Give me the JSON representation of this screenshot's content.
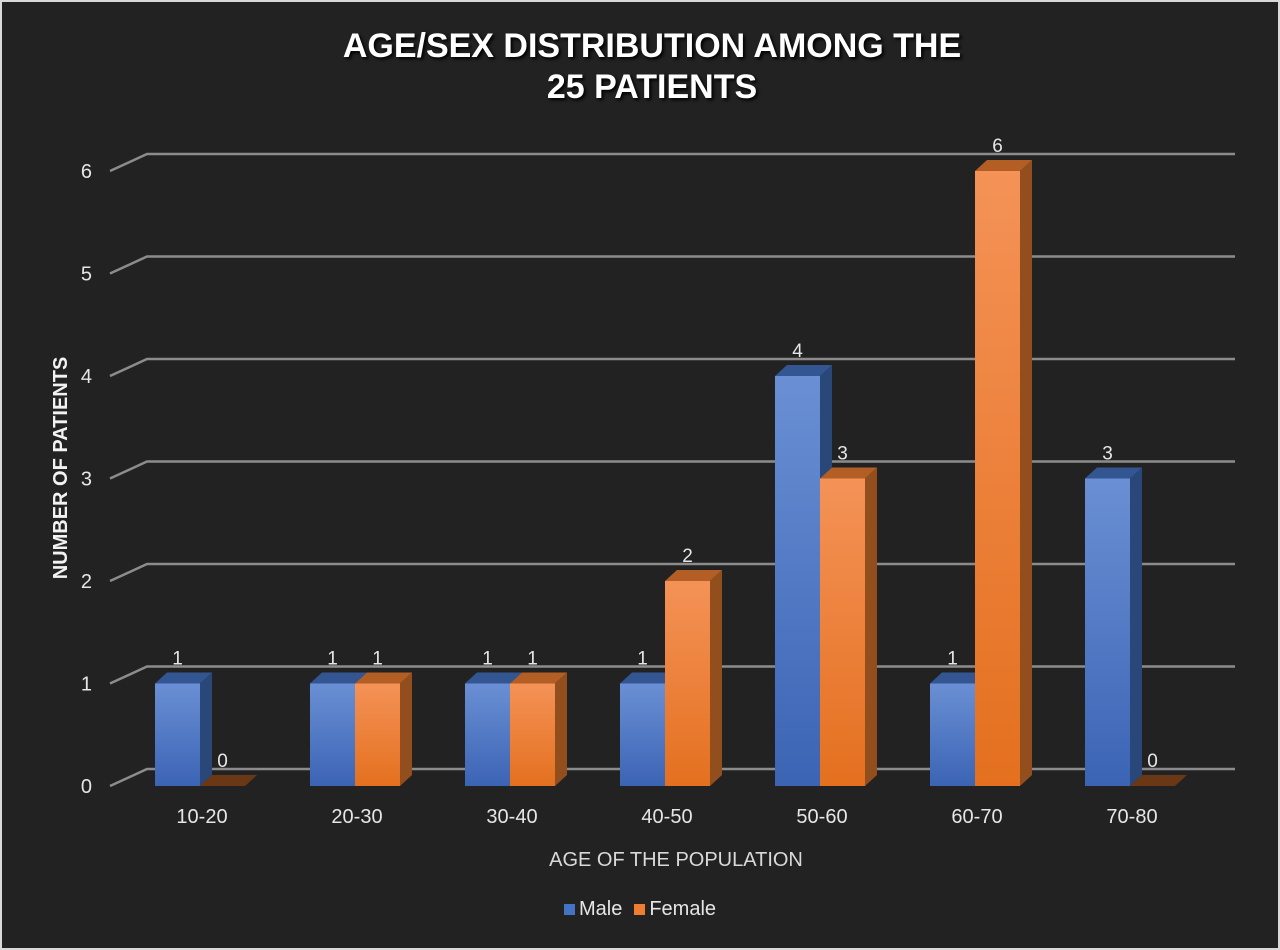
{
  "chart_data": {
    "type": "bar",
    "title": [
      "AGE/SEX DISTRIBUTION AMONG THE",
      "25 PATIENTS"
    ],
    "xlabel": "AGE OF THE POPULATION",
    "ylabel": "NUMBER OF PATIENTS",
    "ylim": [
      0,
      6
    ],
    "yticks": [
      "0",
      "1",
      "2",
      "3",
      "4",
      "5",
      "6"
    ],
    "categories": [
      "10-20",
      "20-30",
      "30-40",
      "40-50",
      "50-60",
      "60-70",
      "70-80"
    ],
    "series": [
      {
        "name": "Male",
        "values": [
          1,
          1,
          1,
          1,
          4,
          1,
          3
        ],
        "color": "#4472c4"
      },
      {
        "name": "Female",
        "values": [
          0,
          1,
          1,
          2,
          3,
          6,
          0
        ],
        "color": "#ed7d31"
      }
    ],
    "data_labels": true,
    "grid": true,
    "legend_position": "bottom",
    "style": "3d-column",
    "background": "#222222"
  }
}
